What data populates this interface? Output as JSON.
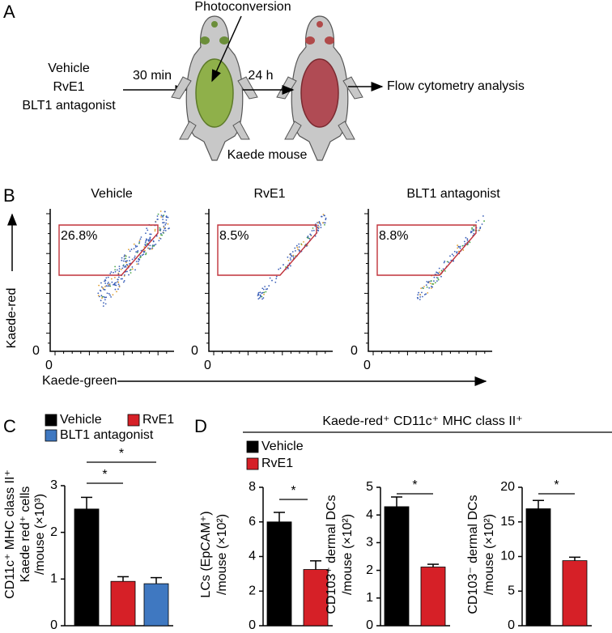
{
  "panel_labels": [
    "A",
    "B",
    "C",
    "D"
  ],
  "panel_a": {
    "inputs": [
      "Vehicle",
      "RvE1",
      "BLT1 antagonist"
    ],
    "step1": "30 min",
    "photoconversion": "Photoconversion",
    "step2": "24 h",
    "output": "Flow cytometry analysis",
    "mouse": "Kaede mouse"
  },
  "panel_b": {
    "plots": [
      {
        "title": "Vehicle",
        "gate": "26.8%"
      },
      {
        "title": "RvE1",
        "gate": "8.5%"
      },
      {
        "title": "BLT1 antagonist",
        "gate": "8.8%"
      }
    ],
    "y_label": "Kaede-red",
    "x_label": "Kaede-green",
    "origin": "0"
  },
  "panel_d_header": "Kaede-red⁺ CD11c⁺ MHC class II⁺",
  "chart_data": [
    {
      "type": "bar",
      "y_label": [
        "CD11c⁺ MHC class II⁺",
        "Kaede red⁺ cells",
        "/mouse (×10³)"
      ],
      "series": [
        {
          "name": "Vehicle",
          "color": "#000000",
          "values": [
            2.5
          ],
          "errors": [
            0.25
          ]
        },
        {
          "name": "RvE1",
          "color": "#d62027",
          "values": [
            0.95
          ],
          "errors": [
            0.1
          ]
        },
        {
          "name": "BLT1 antagonist",
          "color": "#3f78c1",
          "values": [
            0.9
          ],
          "errors": [
            0.13
          ]
        }
      ],
      "ylim": [
        0,
        3
      ],
      "yticks": [
        0,
        1,
        2,
        3
      ],
      "annotations": [
        "*",
        "*"
      ]
    },
    {
      "type": "bar",
      "y_label": [
        "LCs (EpCAM⁺)",
        "/mouse (×10²)"
      ],
      "series": [
        {
          "name": "Vehicle",
          "color": "#000000",
          "values": [
            6.0
          ],
          "errors": [
            0.55
          ]
        },
        {
          "name": "RvE1",
          "color": "#d62027",
          "values": [
            3.25
          ],
          "errors": [
            0.5
          ]
        }
      ],
      "ylim": [
        0,
        8
      ],
      "yticks": [
        0,
        2,
        4,
        6,
        8
      ],
      "annotations": [
        "*"
      ]
    },
    {
      "type": "bar",
      "y_label": [
        "CD103⁺ dermal DCs",
        "/mouse (×10²)"
      ],
      "series": [
        {
          "color": "#000000",
          "values": [
            4.3
          ],
          "errors": [
            0.35
          ]
        },
        {
          "color": "#d62027",
          "values": [
            2.12
          ],
          "errors": [
            0.1
          ]
        }
      ],
      "ylim": [
        0,
        5
      ],
      "yticks": [
        0,
        1,
        2,
        3,
        4,
        5
      ],
      "annotations": [
        "*"
      ]
    },
    {
      "type": "bar",
      "y_label": [
        "CD103⁻ dermal DCs",
        "/mouse (×10²)"
      ],
      "series": [
        {
          "color": "#000000",
          "values": [
            16.9
          ],
          "errors": [
            1.2
          ]
        },
        {
          "color": "#d62027",
          "values": [
            9.4
          ],
          "errors": [
            0.5
          ]
        }
      ],
      "ylim": [
        0,
        20
      ],
      "yticks": [
        0,
        5,
        10,
        15,
        20
      ],
      "annotations": [
        "*"
      ]
    }
  ]
}
